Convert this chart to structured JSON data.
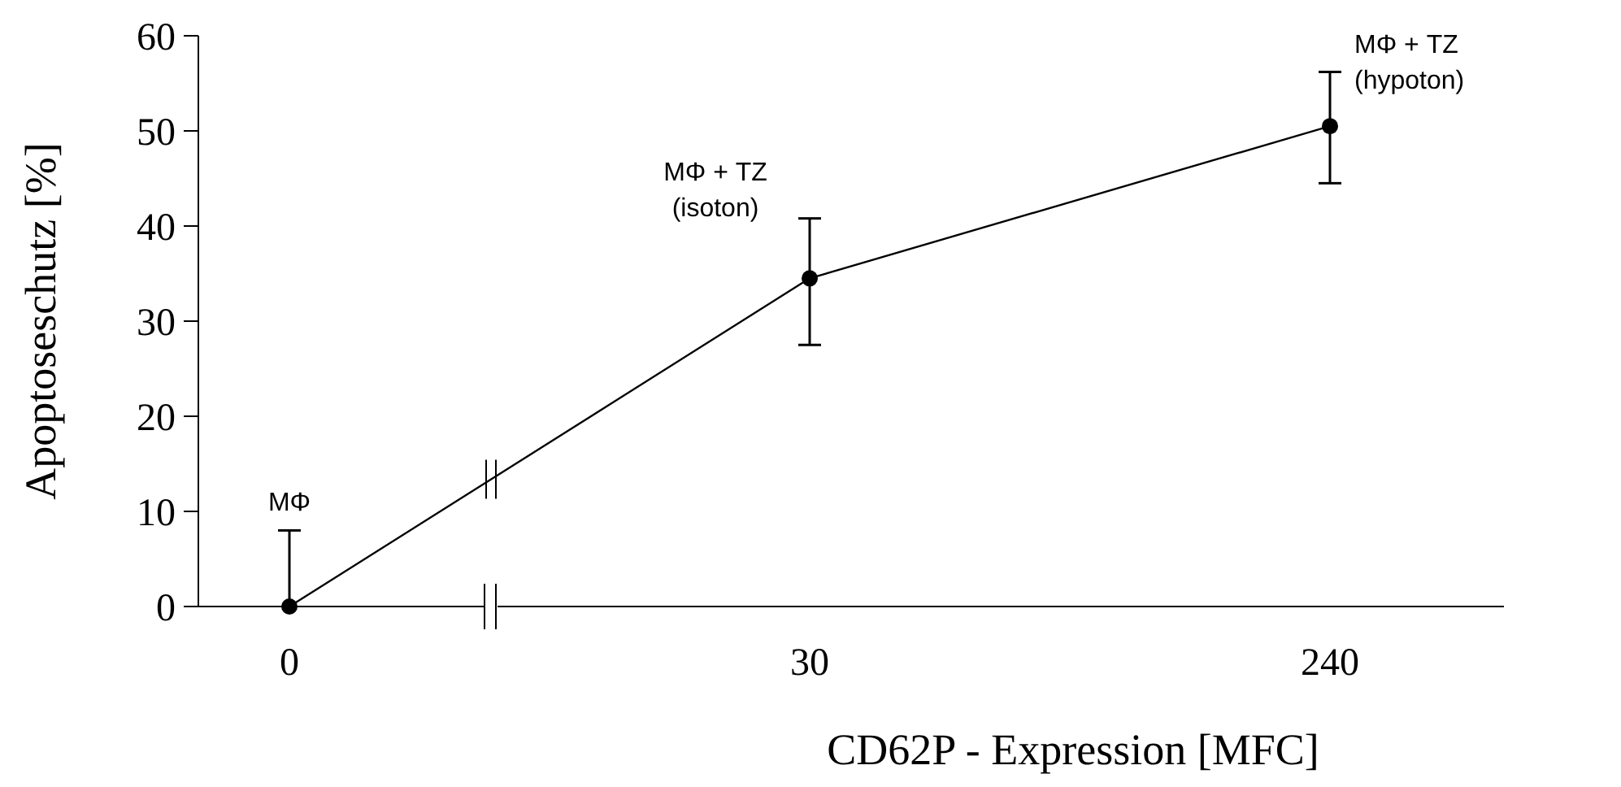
{
  "chart_data": {
    "type": "line",
    "xlabel": "CD62P - Expression [MFC]",
    "ylabel": "Apoptoseschutz [%]",
    "categories": [
      "0",
      "30",
      "240"
    ],
    "series": [
      {
        "color": "#000000",
        "values": [
          0,
          34.5,
          50.5
        ],
        "errors": [
          [
            0,
            8
          ],
          [
            27.5,
            40.8
          ],
          [
            44.5,
            56.2
          ]
        ]
      }
    ],
    "ylim": [
      0,
      60
    ],
    "yticks": [
      0,
      10,
      20,
      30,
      40,
      50,
      60
    ],
    "grid": false,
    "marker": "circle",
    "line_style": "solid",
    "annotations": [
      {
        "text": "MΦ",
        "x": "0",
        "y": 8
      },
      {
        "text": "MΦ + TZ\n(isoton)",
        "x": "30",
        "y": 34.5
      },
      {
        "text": "MΦ + TZ\n(hypoton)",
        "x": "240",
        "y": 50.5
      }
    ]
  }
}
